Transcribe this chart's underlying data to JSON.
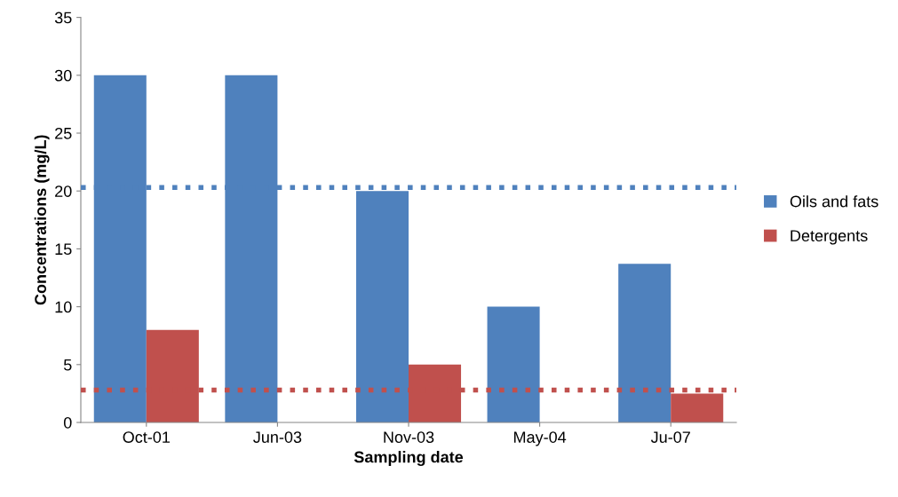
{
  "chart_data": {
    "type": "bar",
    "xlabel": "Sampling date",
    "ylabel": "Concentrations (mg/L)",
    "categories": [
      "Oct-01",
      "Jun-03",
      "Nov-03",
      "May-04",
      "Ju-07"
    ],
    "series": [
      {
        "name": "Oils and fats",
        "color": "#4f81bd",
        "values": [
          30,
          30,
          20,
          10,
          13.7
        ]
      },
      {
        "name": "Detergents",
        "color": "#c0504d",
        "values": [
          8,
          null,
          5,
          null,
          2.5
        ]
      }
    ],
    "ylim": [
      0,
      35
    ],
    "yticks": [
      0,
      5,
      10,
      15,
      20,
      25,
      30,
      35
    ],
    "ref_lines": [
      {
        "axis": "y",
        "value": 20.3,
        "color": "#4f81bd",
        "line_style": "dotted"
      },
      {
        "axis": "y",
        "value": 2.8,
        "color": "#c0504d",
        "line_style": "dotted"
      }
    ],
    "grid": false,
    "legend": "right"
  }
}
